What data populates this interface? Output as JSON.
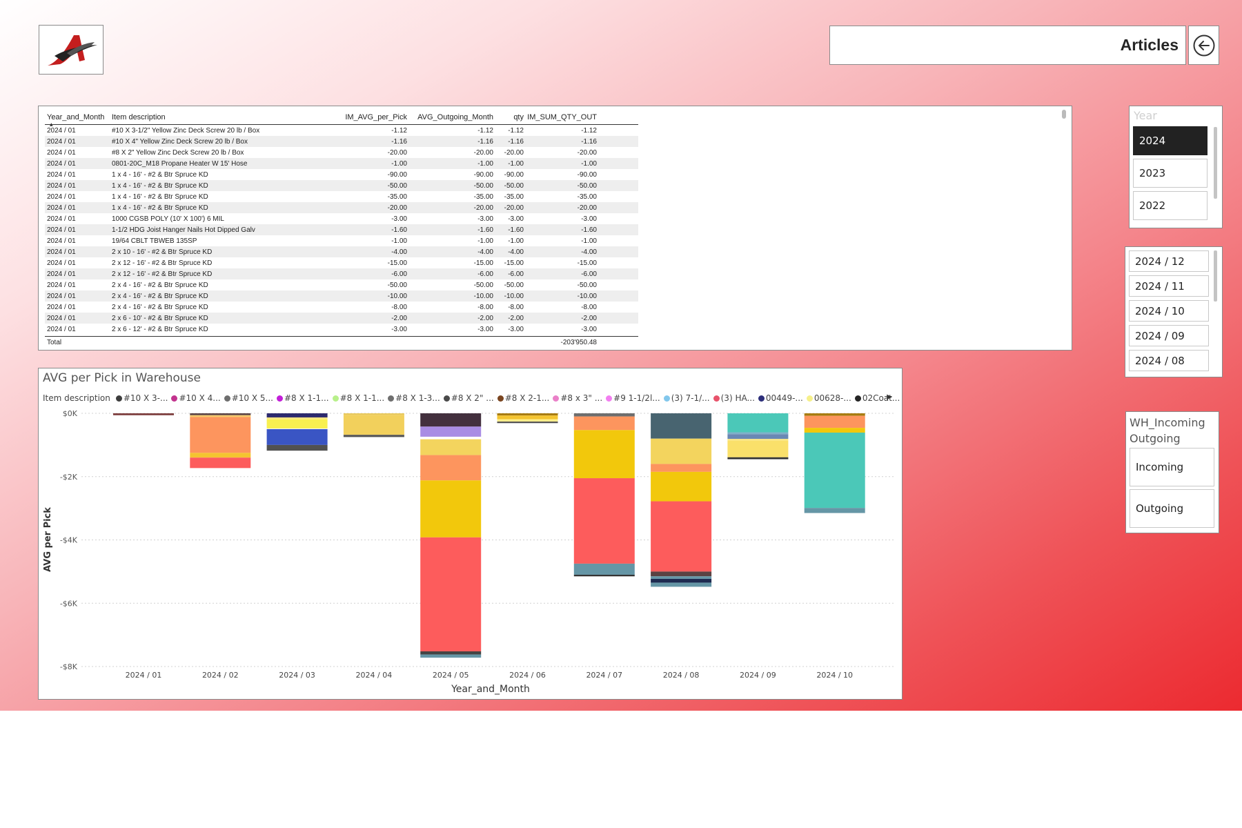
{
  "header": {
    "title": "Articles",
    "back_icon": "arrow-left-circle-icon",
    "logo_icon": "company-logo"
  },
  "table": {
    "columns": [
      "Year_and_Month",
      "Item description",
      "IM_AVG_per_Pick",
      "AVG_Outgoing_Month",
      "qty",
      "IM_SUM_QTY_OUT"
    ],
    "rows": [
      [
        "2024 / 01",
        "#10 X 3-1/2\" Yellow Zinc Deck Screw 20 lb / Box",
        "-1.12",
        "-1.12",
        "-1.12",
        "-1.12"
      ],
      [
        "2024 / 01",
        "#10 X 4\" Yellow Zinc Deck Screw 20 lb / Box",
        "-1.16",
        "-1.16",
        "-1.16",
        "-1.16"
      ],
      [
        "2024 / 01",
        "#8 X 2\" Yellow Zinc Deck Screw 20 lb / Box",
        "-20.00",
        "-20.00",
        "-20.00",
        "-20.00"
      ],
      [
        "2024 / 01",
        "0801-20C_M18 Propane Heater W 15' Hose",
        "-1.00",
        "-1.00",
        "-1.00",
        "-1.00"
      ],
      [
        "2024 / 01",
        "1 x 4 - 16' - #2 & Btr Spruce KD",
        "-90.00",
        "-90.00",
        "-90.00",
        "-90.00"
      ],
      [
        "2024 / 01",
        "1 x 4 - 16' - #2 & Btr Spruce KD",
        "-50.00",
        "-50.00",
        "-50.00",
        "-50.00"
      ],
      [
        "2024 / 01",
        "1 x 4 - 16' - #2 & Btr Spruce KD",
        "-35.00",
        "-35.00",
        "-35.00",
        "-35.00"
      ],
      [
        "2024 / 01",
        "1 x 4 - 16' - #2 & Btr Spruce KD",
        "-20.00",
        "-20.00",
        "-20.00",
        "-20.00"
      ],
      [
        "2024 / 01",
        "1000 CGSB POLY (10' X 100') 6 MIL",
        "-3.00",
        "-3.00",
        "-3.00",
        "-3.00"
      ],
      [
        "2024 / 01",
        "1-1/2 HDG Joist Hanger Nails Hot Dipped Galv",
        "-1.60",
        "-1.60",
        "-1.60",
        "-1.60"
      ],
      [
        "2024 / 01",
        "19/64 CBLT TBWEB 135SP",
        "-1.00",
        "-1.00",
        "-1.00",
        "-1.00"
      ],
      [
        "2024 / 01",
        "2 x 10 - 16' - #2 & Btr Spruce KD",
        "-4.00",
        "-4.00",
        "-4.00",
        "-4.00"
      ],
      [
        "2024 / 01",
        "2 x 12 - 16' - #2 & Btr Spruce KD",
        "-15.00",
        "-15.00",
        "-15.00",
        "-15.00"
      ],
      [
        "2024 / 01",
        "2 x 12 - 16' - #2 & Btr Spruce KD",
        "-6.00",
        "-6.00",
        "-6.00",
        "-6.00"
      ],
      [
        "2024 / 01",
        "2 x 4 - 16' - #2 & Btr Spruce KD",
        "-50.00",
        "-50.00",
        "-50.00",
        "-50.00"
      ],
      [
        "2024 / 01",
        "2 x 4 - 16' - #2 & Btr Spruce KD",
        "-10.00",
        "-10.00",
        "-10.00",
        "-10.00"
      ],
      [
        "2024 / 01",
        "2 x 4 - 16' - #2 & Btr Spruce KD",
        "-8.00",
        "-8.00",
        "-8.00",
        "-8.00"
      ],
      [
        "2024 / 01",
        "2 x 6 - 10' - #2 & Btr Spruce KD",
        "-2.00",
        "-2.00",
        "-2.00",
        "-2.00"
      ],
      [
        "2024 / 01",
        "2 x 6 - 12' - #2 & Btr Spruce KD",
        "-3.00",
        "-3.00",
        "-3.00",
        "-3.00"
      ]
    ],
    "total_label": "Total",
    "total_value": "-203'950.48"
  },
  "chart_data": {
    "type": "bar",
    "title": "AVG per Pick in Warehouse",
    "xlabel": "Year_and_Month",
    "ylabel": "AVG per Pick",
    "legend_title": "Item description",
    "legend_placement": "top",
    "ylim": [
      -8000,
      0
    ],
    "yticks": [
      0,
      -2000,
      -4000,
      -6000,
      -8000
    ],
    "ytick_labels": [
      "$0K",
      "-$2K",
      "-$4K",
      "-$6K",
      "-$8K"
    ],
    "grid": true,
    "categories": [
      "2024 / 01",
      "2024 / 02",
      "2024 / 03",
      "2024 / 04",
      "2024 / 05",
      "2024 / 06",
      "2024 / 07",
      "2024 / 08",
      "2024 / 09",
      "2024 / 10"
    ],
    "legend": [
      {
        "name": "#10 X 3-...",
        "color": "#3d3d3d"
      },
      {
        "name": "#10 X 4...",
        "color": "#c2338e"
      },
      {
        "name": "#10 X 5...",
        "color": "#6e6e6e"
      },
      {
        "name": "#8 X 1-1...",
        "color": "#c21fd8"
      },
      {
        "name": "#8 X 1-1...",
        "color": "#b8f08a"
      },
      {
        "name": "#8 X 1-3...",
        "color": "#6f6f6f"
      },
      {
        "name": "#8 X 2\" ...",
        "color": "#4a4a4a"
      },
      {
        "name": "#8 X 2-1...",
        "color": "#7a4520"
      },
      {
        "name": "#8 x 3\" ...",
        "color": "#ea80c8"
      },
      {
        "name": "#9 1-1/2l...",
        "color": "#f27ef0"
      },
      {
        "name": "(3) 7-1/...",
        "color": "#82c7ec"
      },
      {
        "name": "(3) HA...",
        "color": "#e8536b"
      },
      {
        "name": "00449-...",
        "color": "#2d2f7a"
      },
      {
        "name": "00628-...",
        "color": "#f6f08a"
      },
      {
        "name": "02Coat...",
        "color": "#252525"
      }
    ],
    "stacks": [
      [
        {
          "value": -60,
          "color": "#7b3b3b"
        }
      ],
      [
        {
          "value": -60,
          "color": "#5a4242"
        },
        {
          "value": -60,
          "color": "#f6c86a"
        },
        {
          "value": -1130,
          "color": "#fd955e"
        },
        {
          "value": -150,
          "color": "#f4c430"
        },
        {
          "value": -330,
          "color": "#fd5c5c"
        }
      ],
      [
        {
          "value": -130,
          "color": "#2d2a6e"
        },
        {
          "value": -60,
          "color": "#fbe680"
        },
        {
          "value": -290,
          "color": "#f8f050"
        },
        {
          "value": -20,
          "color": "#ffffff"
        },
        {
          "value": -500,
          "color": "#3a55c4"
        },
        {
          "value": -180,
          "color": "#515151"
        }
      ],
      [
        {
          "value": -60,
          "color": "#e8c85a"
        },
        {
          "value": -620,
          "color": "#f2d05c"
        },
        {
          "value": -70,
          "color": "#555555"
        }
      ],
      [
        {
          "value": -420,
          "color": "#43303e"
        },
        {
          "value": -320,
          "color": "#a98ce4"
        },
        {
          "value": -80,
          "color": "#ffffff"
        },
        {
          "value": -500,
          "color": "#f3d45e"
        },
        {
          "value": -800,
          "color": "#fd955e"
        },
        {
          "value": -1800,
          "color": "#f2c80c"
        },
        {
          "value": -3600,
          "color": "#fd5c5c"
        },
        {
          "value": -100,
          "color": "#444444"
        },
        {
          "value": -100,
          "color": "#6596a6"
        }
      ],
      [
        {
          "value": -70,
          "color": "#a87c10"
        },
        {
          "value": -120,
          "color": "#f4c430"
        },
        {
          "value": -70,
          "color": "#ffef8a"
        },
        {
          "value": -50,
          "color": "#555555"
        }
      ],
      [
        {
          "value": -100,
          "color": "#6e6e6e"
        },
        {
          "value": -430,
          "color": "#fd955e"
        },
        {
          "value": -1520,
          "color": "#f2c80c"
        },
        {
          "value": -2700,
          "color": "#fd5c5c"
        },
        {
          "value": -350,
          "color": "#6596a6"
        },
        {
          "value": -50,
          "color": "#333333"
        }
      ],
      [
        {
          "value": -800,
          "color": "#486470"
        },
        {
          "value": -800,
          "color": "#f3d45e"
        },
        {
          "value": -250,
          "color": "#fd955e"
        },
        {
          "value": -930,
          "color": "#f2c80c"
        },
        {
          "value": -2220,
          "color": "#fd5c5c"
        },
        {
          "value": -150,
          "color": "#5a4242"
        },
        {
          "value": -80,
          "color": "#6596a6"
        },
        {
          "value": -120,
          "color": "#1e2a50"
        },
        {
          "value": -130,
          "color": "#6596a6"
        }
      ],
      [
        {
          "value": -600,
          "color": "#4bc8b8"
        },
        {
          "value": -60,
          "color": "#7fb0c8"
        },
        {
          "value": -150,
          "color": "#6a88b4"
        },
        {
          "value": -60,
          "color": "#fbe680"
        },
        {
          "value": -520,
          "color": "#fae06a"
        },
        {
          "value": -60,
          "color": "#333333"
        }
      ],
      [
        {
          "value": -80,
          "color": "#a87c10"
        },
        {
          "value": -380,
          "color": "#fd955e"
        },
        {
          "value": -150,
          "color": "#f2c80c"
        },
        {
          "value": -2380,
          "color": "#4bc8b8"
        },
        {
          "value": -160,
          "color": "#6596a6"
        }
      ]
    ]
  },
  "year_slicer": {
    "header": "Year",
    "options": [
      "2024",
      "2023",
      "2022"
    ],
    "selected": "2024"
  },
  "month_slicer": {
    "options": [
      "2024 / 12",
      "2024 / 11",
      "2024 / 10",
      "2024 / 09",
      "2024 / 08"
    ]
  },
  "inout_slicer": {
    "header": "WH_Incoming Outgoing",
    "options": [
      "Incoming",
      "Outgoing"
    ]
  }
}
